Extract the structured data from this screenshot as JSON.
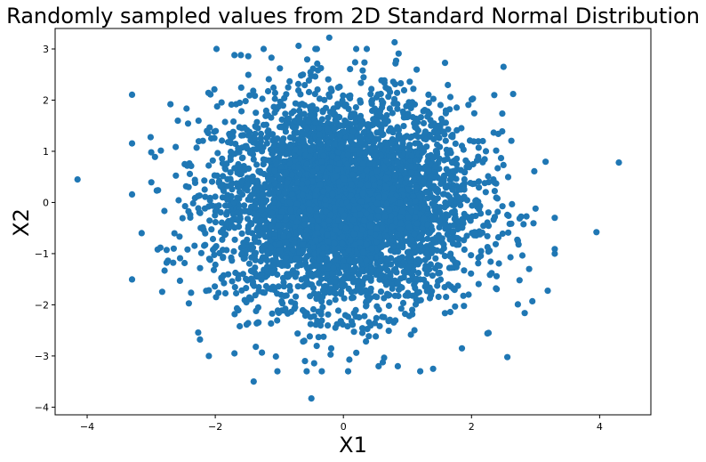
{
  "chart_data": {
    "type": "scatter",
    "title": "Randomly sampled values from 2D Standard Normal Distribution",
    "xlabel": "X1",
    "ylabel": "X2",
    "xlim": [
      -4.5,
      4.8
    ],
    "ylim": [
      -4.15,
      3.4
    ],
    "xticks": [
      -4,
      -2,
      0,
      2,
      4
    ],
    "yticks": [
      -4,
      -3,
      -2,
      -1,
      0,
      1,
      2,
      3
    ],
    "grid": false,
    "legend": "none",
    "marker_color": "#1f77b4",
    "series": [
      {
        "points": [
          [
            -4.15,
            0.45
          ],
          [
            4.3,
            0.78
          ],
          [
            3.95,
            -0.58
          ],
          [
            -3.15,
            -0.6
          ],
          [
            3.3,
            -0.3
          ],
          [
            2.95,
            -1.93
          ],
          [
            -0.22,
            3.22
          ],
          [
            0.8,
            3.13
          ],
          [
            0.2,
            3.0
          ],
          [
            -1.4,
            -3.5
          ],
          [
            -0.5,
            -3.83
          ],
          [
            -1.7,
            2.88
          ],
          [
            -1.6,
            2.88
          ],
          [
            -0.7,
            3.06
          ],
          [
            2.5,
            2.65
          ],
          [
            2.65,
            2.12
          ],
          [
            -2.7,
            1.92
          ],
          [
            -2.1,
            -3.0
          ],
          [
            -3.0,
            0.98
          ],
          [
            -2.9,
            -0.92
          ],
          [
            1.2,
            -3.3
          ],
          [
            1.4,
            -3.25
          ],
          [
            1.85,
            -2.85
          ],
          [
            -1.7,
            -2.95
          ],
          [
            -0.6,
            -3.1
          ],
          [
            0.55,
            -3.2
          ],
          [
            0.85,
            -3.2
          ],
          [
            3.0,
            -0.12
          ],
          [
            2.9,
            -1.3
          ],
          [
            2.75,
            -1.52
          ]
        ],
        "n_random": 4500,
        "mean": [
          0,
          0
        ],
        "std": [
          1,
          1
        ]
      }
    ]
  }
}
